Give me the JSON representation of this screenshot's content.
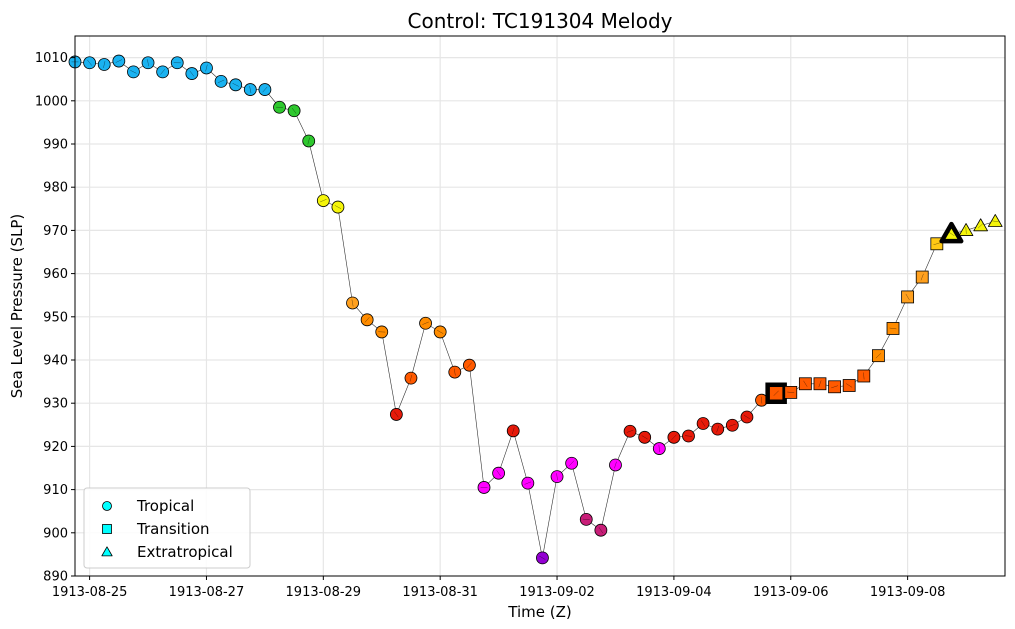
{
  "chart_data": {
    "type": "line",
    "title": "Control: TC191304 Melody",
    "xlabel": "Time (Z)",
    "ylabel": "Sea Level Pressure (SLP)",
    "ylim": [
      890,
      1015
    ],
    "yticks": [
      890,
      900,
      910,
      920,
      930,
      940,
      950,
      960,
      970,
      980,
      990,
      1000,
      1010
    ],
    "xlim_days": [
      "1913-08-24T18:00",
      "1913-09-09T16:00"
    ],
    "xticks": [
      "1913-08-25",
      "1913-08-27",
      "1913-08-29",
      "1913-08-31",
      "1913-09-02",
      "1913-09-04",
      "1913-09-06",
      "1913-09-08"
    ],
    "grid": true,
    "legend": {
      "placement": "lower-left",
      "entries": [
        {
          "label": "Tropical",
          "marker": "circle",
          "color": "#00ffff"
        },
        {
          "label": "Transition",
          "marker": "square",
          "color": "#00ffff"
        },
        {
          "label": "Extratropical",
          "marker": "triangle",
          "color": "#00ffff"
        }
      ]
    },
    "points": [
      {
        "t": "1913-08-24T18:00",
        "slp": 1009.0,
        "color": "#1ab2f0",
        "marker": "circle"
      },
      {
        "t": "1913-08-25T00:00",
        "slp": 1008.8,
        "color": "#1ab2f0",
        "marker": "circle"
      },
      {
        "t": "1913-08-25T06:00",
        "slp": 1008.4,
        "color": "#1ab2f0",
        "marker": "circle"
      },
      {
        "t": "1913-08-25T12:00",
        "slp": 1009.2,
        "color": "#1ab2f0",
        "marker": "circle"
      },
      {
        "t": "1913-08-25T18:00",
        "slp": 1006.7,
        "color": "#1ab2f0",
        "marker": "circle"
      },
      {
        "t": "1913-08-26T00:00",
        "slp": 1008.8,
        "color": "#1ab2f0",
        "marker": "circle"
      },
      {
        "t": "1913-08-26T06:00",
        "slp": 1006.7,
        "color": "#1ab2f0",
        "marker": "circle"
      },
      {
        "t": "1913-08-26T12:00",
        "slp": 1008.8,
        "color": "#1ab2f0",
        "marker": "circle"
      },
      {
        "t": "1913-08-26T18:00",
        "slp": 1006.3,
        "color": "#1ab2f0",
        "marker": "circle"
      },
      {
        "t": "1913-08-27T00:00",
        "slp": 1007.6,
        "color": "#1ab2f0",
        "marker": "circle"
      },
      {
        "t": "1913-08-27T06:00",
        "slp": 1004.5,
        "color": "#1ab2f0",
        "marker": "circle"
      },
      {
        "t": "1913-08-27T12:00",
        "slp": 1003.7,
        "color": "#1ab2f0",
        "marker": "circle"
      },
      {
        "t": "1913-08-27T18:00",
        "slp": 1002.6,
        "color": "#1ab2f0",
        "marker": "circle"
      },
      {
        "t": "1913-08-28T00:00",
        "slp": 1002.6,
        "color": "#1ab2f0",
        "marker": "circle"
      },
      {
        "t": "1913-08-28T06:00",
        "slp": 998.5,
        "color": "#2ec82e",
        "marker": "circle"
      },
      {
        "t": "1913-08-28T12:00",
        "slp": 997.7,
        "color": "#2ec82e",
        "marker": "circle"
      },
      {
        "t": "1913-08-28T18:00",
        "slp": 990.7,
        "color": "#2ec82e",
        "marker": "circle"
      },
      {
        "t": "1913-08-29T00:00",
        "slp": 976.9,
        "color": "#f5f50a",
        "marker": "circle"
      },
      {
        "t": "1913-08-29T06:00",
        "slp": 975.4,
        "color": "#f5f50a",
        "marker": "circle"
      },
      {
        "t": "1913-08-29T12:00",
        "slp": 953.2,
        "color": "#ffa01e",
        "marker": "circle"
      },
      {
        "t": "1913-08-29T18:00",
        "slp": 949.3,
        "color": "#ff8c00",
        "marker": "circle"
      },
      {
        "t": "1913-08-30T00:00",
        "slp": 946.5,
        "color": "#ff8c00",
        "marker": "circle"
      },
      {
        "t": "1913-08-30T06:00",
        "slp": 927.4,
        "color": "#e61a0a",
        "marker": "circle"
      },
      {
        "t": "1913-08-30T12:00",
        "slp": 935.8,
        "color": "#ff5a00",
        "marker": "circle"
      },
      {
        "t": "1913-08-30T18:00",
        "slp": 948.5,
        "color": "#ff8c00",
        "marker": "circle"
      },
      {
        "t": "1913-08-31T00:00",
        "slp": 946.5,
        "color": "#ff8c00",
        "marker": "circle"
      },
      {
        "t": "1913-08-31T06:00",
        "slp": 937.2,
        "color": "#ff5a00",
        "marker": "circle"
      },
      {
        "t": "1913-08-31T12:00",
        "slp": 938.8,
        "color": "#ff5a00",
        "marker": "circle"
      },
      {
        "t": "1913-08-31T18:00",
        "slp": 910.5,
        "color": "#ff00ff",
        "marker": "circle"
      },
      {
        "t": "1913-09-01T00:00",
        "slp": 913.8,
        "color": "#ff00ff",
        "marker": "circle"
      },
      {
        "t": "1913-09-01T06:00",
        "slp": 923.6,
        "color": "#e61a0a",
        "marker": "circle"
      },
      {
        "t": "1913-09-01T12:00",
        "slp": 911.5,
        "color": "#ff00ff",
        "marker": "circle"
      },
      {
        "t": "1913-09-01T18:00",
        "slp": 894.2,
        "color": "#9400d3",
        "marker": "circle"
      },
      {
        "t": "1913-09-02T00:00",
        "slp": 913.0,
        "color": "#ff00ff",
        "marker": "circle"
      },
      {
        "t": "1913-09-02T06:00",
        "slp": 916.1,
        "color": "#ff00ff",
        "marker": "circle"
      },
      {
        "t": "1913-09-02T12:00",
        "slp": 903.1,
        "color": "#c81e78",
        "marker": "circle"
      },
      {
        "t": "1913-09-02T18:00",
        "slp": 900.6,
        "color": "#c81e78",
        "marker": "circle"
      },
      {
        "t": "1913-09-03T00:00",
        "slp": 915.7,
        "color": "#ff00ff",
        "marker": "circle"
      },
      {
        "t": "1913-09-03T06:00",
        "slp": 923.5,
        "color": "#e61a0a",
        "marker": "circle"
      },
      {
        "t": "1913-09-03T12:00",
        "slp": 922.1,
        "color": "#e61a0a",
        "marker": "circle"
      },
      {
        "t": "1913-09-03T18:00",
        "slp": 919.5,
        "color": "#ff00ff",
        "marker": "circle"
      },
      {
        "t": "1913-09-04T00:00",
        "slp": 922.1,
        "color": "#e61a0a",
        "marker": "circle"
      },
      {
        "t": "1913-09-04T06:00",
        "slp": 922.4,
        "color": "#e61a0a",
        "marker": "circle"
      },
      {
        "t": "1913-09-04T12:00",
        "slp": 925.3,
        "color": "#e61a0a",
        "marker": "circle"
      },
      {
        "t": "1913-09-04T18:00",
        "slp": 924.0,
        "color": "#e61a0a",
        "marker": "circle"
      },
      {
        "t": "1913-09-05T00:00",
        "slp": 924.9,
        "color": "#e61a0a",
        "marker": "circle"
      },
      {
        "t": "1913-09-05T06:00",
        "slp": 926.8,
        "color": "#e61a0a",
        "marker": "circle"
      },
      {
        "t": "1913-09-05T12:00",
        "slp": 930.7,
        "color": "#ff5a00",
        "marker": "circle"
      },
      {
        "t": "1913-09-05T18:00",
        "slp": 932.3,
        "color": "#ff5a00",
        "marker": "square",
        "highlight": true
      },
      {
        "t": "1913-09-06T00:00",
        "slp": 932.5,
        "color": "#ff5a00",
        "marker": "square"
      },
      {
        "t": "1913-09-06T06:00",
        "slp": 934.5,
        "color": "#ff5a00",
        "marker": "square"
      },
      {
        "t": "1913-09-06T12:00",
        "slp": 934.5,
        "color": "#ff5a00",
        "marker": "square"
      },
      {
        "t": "1913-09-06T18:00",
        "slp": 933.8,
        "color": "#ff5a00",
        "marker": "square"
      },
      {
        "t": "1913-09-07T00:00",
        "slp": 934.1,
        "color": "#ff5a00",
        "marker": "square"
      },
      {
        "t": "1913-09-07T06:00",
        "slp": 936.3,
        "color": "#ff5a00",
        "marker": "square"
      },
      {
        "t": "1913-09-07T12:00",
        "slp": 941.0,
        "color": "#ff8c00",
        "marker": "square"
      },
      {
        "t": "1913-09-07T18:00",
        "slp": 947.3,
        "color": "#ff8c00",
        "marker": "square"
      },
      {
        "t": "1913-09-08T00:00",
        "slp": 954.6,
        "color": "#ffa01e",
        "marker": "square"
      },
      {
        "t": "1913-09-08T06:00",
        "slp": 959.2,
        "color": "#ffa01e",
        "marker": "square"
      },
      {
        "t": "1913-09-08T12:00",
        "slp": 966.9,
        "color": "#ffc814",
        "marker": "square"
      },
      {
        "t": "1913-09-08T18:00",
        "slp": 969.2,
        "color": "#f5f50a",
        "marker": "triangle",
        "highlight": true
      },
      {
        "t": "1913-09-09T00:00",
        "slp": 970.0,
        "color": "#f5f50a",
        "marker": "triangle"
      },
      {
        "t": "1913-09-09T06:00",
        "slp": 971.1,
        "color": "#f5f50a",
        "marker": "triangle"
      },
      {
        "t": "1913-09-09T12:00",
        "slp": 972.1,
        "color": "#f5f50a",
        "marker": "triangle"
      }
    ]
  }
}
